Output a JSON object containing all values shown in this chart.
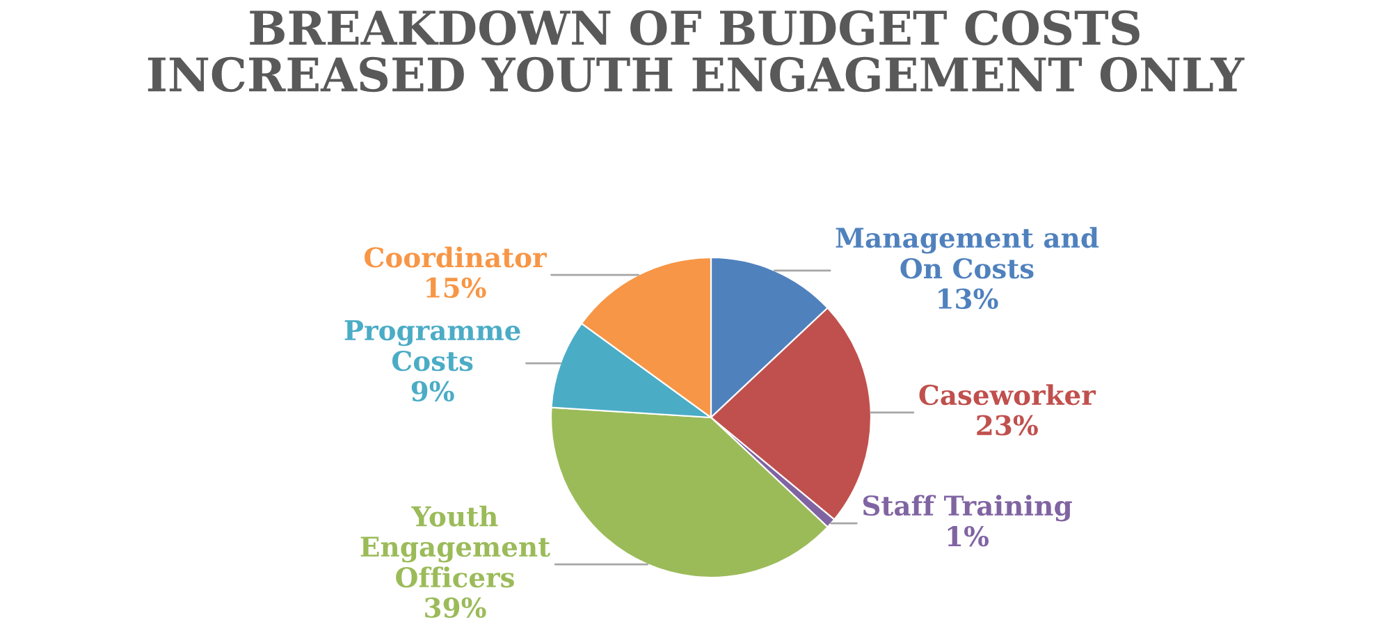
{
  "chart_data": {
    "type": "pie",
    "title": "BREAKDOWN OF BUDGET COSTS\nINCREASED YOUTH ENGAGEMENT ONLY",
    "categories": [
      "Management and On Costs",
      "Caseworker",
      "Staff Training",
      "Youth Engagement Officers",
      "Programme Costs",
      "Coordinator"
    ],
    "values": [
      13,
      23,
      1,
      39,
      9,
      15
    ],
    "colors": [
      "#4f81bd",
      "#c0504d",
      "#8064a2",
      "#9bbb59",
      "#4bacc6",
      "#f79646"
    ],
    "legend": false,
    "value_labels": [
      "13%",
      "23%",
      "1%",
      "39%",
      "9%",
      "15%"
    ]
  }
}
